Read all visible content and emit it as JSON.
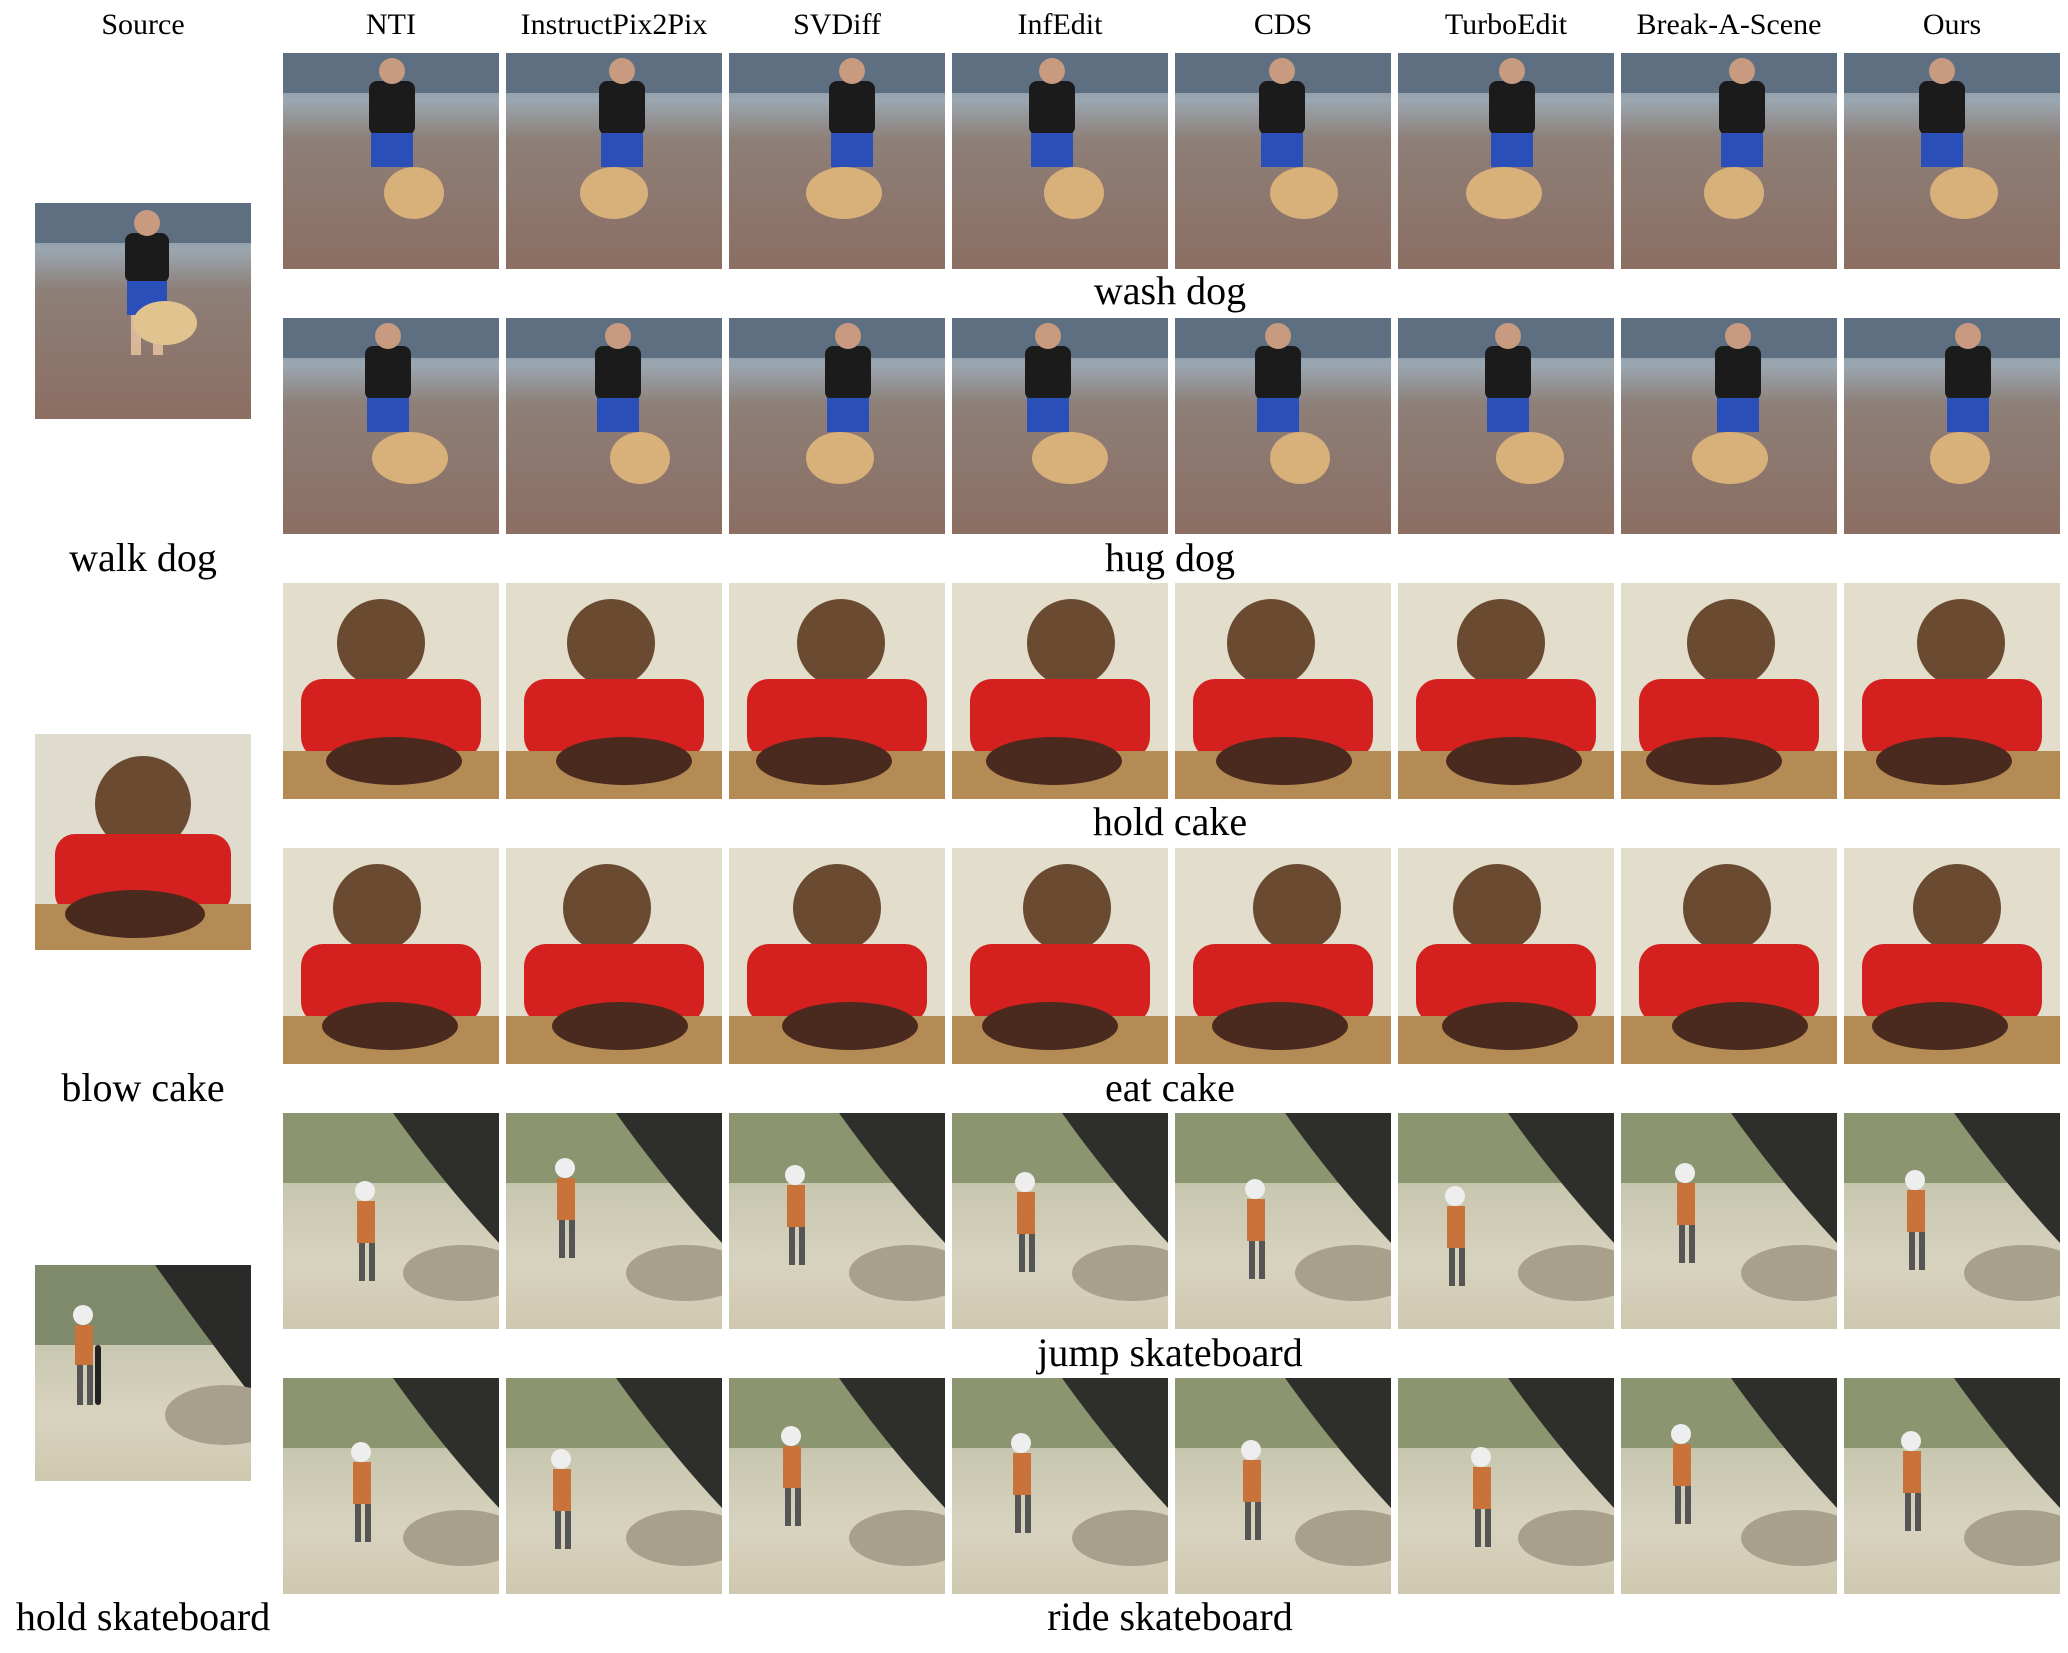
{
  "columns": {
    "source": "Source",
    "methods": [
      "NTI",
      "InstructPix2Pix",
      "SVDiff",
      "InfEdit",
      "CDS",
      "TurboEdit",
      "Break-A-Scene",
      "Ours"
    ]
  },
  "groups": [
    {
      "source_label": "walk dog",
      "scene": "dog",
      "edits": [
        "wash dog",
        "hug dog"
      ]
    },
    {
      "source_label": "blow cake",
      "scene": "cake",
      "edits": [
        "hold cake",
        "eat cake"
      ]
    },
    {
      "source_label": "hold skateboard",
      "scene": "skate",
      "edits": [
        "jump skateboard",
        "ride skateboard"
      ]
    }
  ],
  "palette": {
    "dog_shirt": "#1b1b1b",
    "dog_shorts": "#2a4fb8",
    "dog_fur": "#d8b07a",
    "cake_shirt": "#d4201f",
    "cake_body": "#4a2a1e",
    "skate_shirt": "#c9733a",
    "skate_helmet": "#eeeeee"
  }
}
